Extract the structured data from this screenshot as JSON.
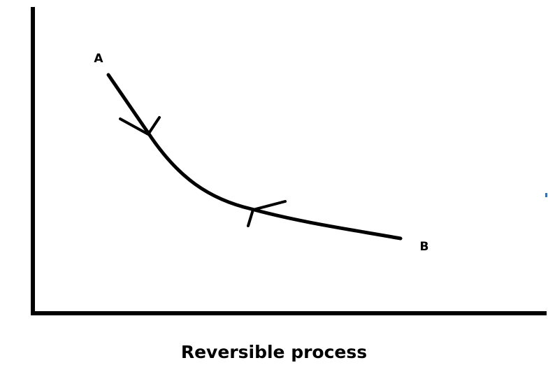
{
  "points": {
    "start": "A",
    "end": "B"
  },
  "caption": "Reversible process"
}
